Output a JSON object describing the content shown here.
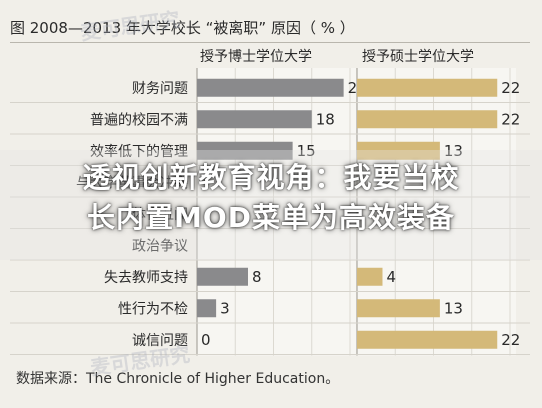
{
  "chart_data": {
    "type": "bar",
    "title": "图 2008—2013 年大学校长 “被离职” 原因（ % ）",
    "categories": [
      "财务问题",
      "普遍的校园不满",
      "效率低下的管理",
      "与大学董事会冲突",
      "体育丑闻",
      "政治争议",
      "失去教师支持",
      "性行为不检",
      "诚信问题"
    ],
    "series": [
      {
        "name": "授予博士学位大学",
        "color": "#8a8a8c",
        "values": [
          23,
          18,
          15,
          null,
          null,
          null,
          8,
          3,
          0
        ]
      },
      {
        "name": "授予硕士学位大学",
        "color": "#d4b979",
        "values": [
          22,
          22,
          13,
          null,
          null,
          null,
          4,
          13,
          22
        ]
      }
    ],
    "xlim": [
      0,
      24
    ],
    "source": "数据来源：The Chronicle of Higher Education。"
  },
  "overlay_text": {
    "line1": "透视创新教育视角：我要当校",
    "line2": "长内置MOD菜单为高效装备"
  },
  "watermark_text": "麦可思研究",
  "visible_category_fragments": [
    "与大",
    "体育",
    "政治争议"
  ]
}
